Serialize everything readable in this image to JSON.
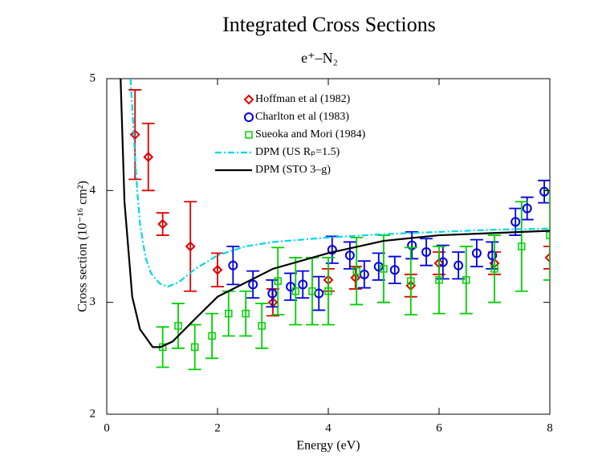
{
  "chart_data": {
    "type": "scatter",
    "title": "Integrated Cross Sections",
    "subtitle": "e⁺–N₂",
    "x_label": "Energy (eV)",
    "y_label": "Cross section (10⁻¹⁶ cm²)",
    "xlim": [
      0,
      8
    ],
    "ylim": [
      2,
      5
    ],
    "xticks": [
      0,
      2,
      4,
      6,
      8
    ],
    "yticks": [
      2,
      3,
      4,
      5
    ],
    "legend": "top-center",
    "series": [
      {
        "name": "Hoffman et al (1982)",
        "color": "#e00000",
        "marker": "diamond",
        "x": [
          0.51,
          0.75,
          1.01,
          1.51,
          2.0,
          3.0,
          4.0,
          4.49,
          5.49,
          6.0,
          7.0,
          8.0
        ],
        "values": [
          4.5,
          4.3,
          3.7,
          3.5,
          3.29,
          3.0,
          3.2,
          3.22,
          3.15,
          3.35,
          3.35,
          3.4
        ],
        "errors": [
          0.4,
          0.3,
          0.1,
          0.4,
          0.15,
          0.12,
          0.1,
          0.1,
          0.1,
          0.1,
          0.1,
          0.1
        ]
      },
      {
        "name": "Charlton et al (1983)",
        "color": "#0000e0",
        "marker": "circle",
        "x": [
          2.28,
          2.64,
          2.99,
          3.32,
          3.54,
          3.83,
          4.07,
          4.39,
          4.65,
          4.91,
          5.2,
          5.51,
          5.77,
          6.07,
          6.35,
          6.68,
          6.96,
          7.38,
          7.59,
          7.9
        ],
        "values": [
          3.33,
          3.16,
          3.08,
          3.14,
          3.16,
          3.08,
          3.47,
          3.42,
          3.25,
          3.32,
          3.29,
          3.51,
          3.45,
          3.36,
          3.33,
          3.44,
          3.42,
          3.72,
          3.84,
          3.99
        ],
        "errors": [
          0.17,
          0.12,
          0.12,
          0.12,
          0.12,
          0.15,
          0.12,
          0.12,
          0.12,
          0.12,
          0.12,
          0.12,
          0.12,
          0.15,
          0.12,
          0.12,
          0.12,
          0.12,
          0.1,
          0.1
        ]
      },
      {
        "name": "Sueoka and Mori (1984)",
        "color": "#00d000",
        "marker": "square",
        "x": [
          1.01,
          1.29,
          1.59,
          1.9,
          2.2,
          2.51,
          2.8,
          3.09,
          3.41,
          3.71,
          4.0,
          4.51,
          5.0,
          5.49,
          6.0,
          6.49,
          7.0,
          7.49,
          8.0
        ],
        "values": [
          2.6,
          2.79,
          2.6,
          2.7,
          2.9,
          2.9,
          2.79,
          3.19,
          3.1,
          3.1,
          3.1,
          3.28,
          3.3,
          3.19,
          3.2,
          3.2,
          3.3,
          3.5,
          3.6
        ],
        "errors": [
          0.18,
          0.2,
          0.2,
          0.2,
          0.2,
          0.2,
          0.2,
          0.3,
          0.3,
          0.3,
          0.3,
          0.3,
          0.3,
          0.3,
          0.3,
          0.3,
          0.3,
          0.4,
          0.4
        ]
      },
      {
        "name": "DPM (US  Rₚ=1.5)",
        "color": "#00d8e8",
        "line": "dashdot",
        "x": [
          0.43,
          0.5,
          0.55,
          0.6,
          0.7,
          0.8,
          0.95,
          1.1,
          1.3,
          1.6,
          2,
          2.5,
          3,
          4,
          5,
          6,
          7,
          8
        ],
        "values": [
          5,
          4.4,
          4.0,
          3.7,
          3.4,
          3.26,
          3.17,
          3.14,
          3.18,
          3.3,
          3.42,
          3.5,
          3.54,
          3.58,
          3.61,
          3.63,
          3.65,
          3.66
        ]
      },
      {
        "name": "DPM (STO 3–g)",
        "color": "#000000",
        "line": "solid",
        "x": [
          0.25,
          0.32,
          0.46,
          0.6,
          0.83,
          0.97,
          1.19,
          1.55,
          2,
          3,
          4,
          5,
          6,
          7,
          8
        ],
        "values": [
          5,
          3.9,
          3.05,
          2.76,
          2.6,
          2.6,
          2.65,
          2.83,
          3.05,
          3.3,
          3.44,
          3.55,
          3.6,
          3.62,
          3.64
        ]
      }
    ]
  }
}
